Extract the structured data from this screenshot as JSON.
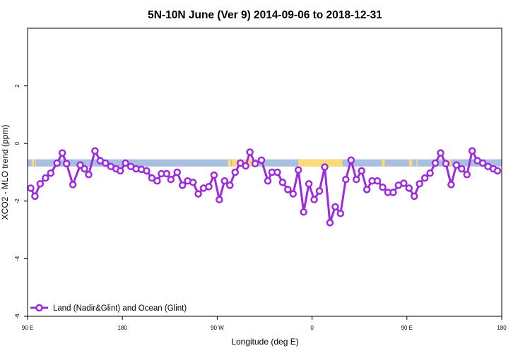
{
  "chart_data": {
    "type": "line",
    "title": "5N-10N June (Ver 9)   2014-09-06 to 2018-12-31",
    "xlabel": "Longitude (deg E)",
    "ylabel": "XCO2 - MLO trend (ppm)",
    "xlim": [
      90,
      540
    ],
    "ylim": [
      -6,
      4
    ],
    "xticks": [
      {
        "value": 90,
        "label": "90 E"
      },
      {
        "value": 180,
        "label": "180"
      },
      {
        "value": 270,
        "label": "90 W"
      },
      {
        "value": 360,
        "label": "0"
      },
      {
        "value": 450,
        "label": "90 E"
      },
      {
        "value": 540,
        "label": "180"
      }
    ],
    "yticks": [
      {
        "value": -6,
        "label": "-6"
      },
      {
        "value": -4,
        "label": "-4"
      },
      {
        "value": -2,
        "label": "-2"
      },
      {
        "value": 0,
        "label": "0"
      },
      {
        "value": 2,
        "label": "2"
      }
    ],
    "band": {
      "y_range": [
        -0.8,
        -0.55
      ],
      "ocean_color": "#a8bfdf",
      "land_color": "#fcd97a"
    },
    "land_segments": [
      [
        94,
        96
      ],
      [
        97,
        98
      ],
      [
        280,
        283
      ],
      [
        284,
        305
      ],
      [
        306,
        307
      ],
      [
        312,
        314
      ],
      [
        347,
        389
      ],
      [
        426,
        429
      ],
      [
        452,
        455
      ],
      [
        459,
        460
      ],
      [
        489,
        492
      ]
    ],
    "legend": {
      "position": "bottom-left"
    },
    "grid": false,
    "series": [
      {
        "name": "Land (Nadir&Glint) and Ocean (Glint)",
        "color": "#9b2bdc",
        "x": [
          93,
          97,
          102,
          107,
          112,
          118,
          123,
          127,
          133,
          140,
          144,
          148,
          154,
          159,
          164,
          169,
          174,
          178,
          183,
          188,
          193,
          198,
          203,
          208,
          213,
          217,
          222,
          226,
          232,
          237,
          242,
          247,
          252,
          257,
          262,
          267,
          272,
          277,
          282,
          287,
          292,
          297,
          301,
          306,
          312,
          318,
          322,
          327,
          332,
          337,
          342,
          347,
          352,
          357,
          362,
          367,
          372,
          377,
          382,
          387,
          392,
          397,
          402,
          407,
          412,
          417,
          422,
          427,
          432,
          437,
          442,
          447,
          452,
          457,
          462,
          467,
          472,
          477,
          482,
          487,
          492,
          497,
          502,
          507,
          512,
          517,
          522,
          527,
          532,
          536
        ],
        "values": [
          -1.55,
          -1.83,
          -1.4,
          -1.2,
          -1.03,
          -0.68,
          -0.33,
          -0.7,
          -1.43,
          -0.75,
          -0.88,
          -1.08,
          -0.26,
          -0.6,
          -0.68,
          -0.8,
          -0.88,
          -0.95,
          -0.68,
          -0.8,
          -0.88,
          -0.9,
          -0.95,
          -1.2,
          -1.3,
          -1.05,
          -1.05,
          -1.25,
          -1.0,
          -1.45,
          -1.3,
          -1.35,
          -1.75,
          -1.55,
          -1.5,
          -1.1,
          -1.95,
          -1.3,
          -1.45,
          -1.0,
          -0.68,
          -0.78,
          -0.3,
          -0.7,
          -0.58,
          -1.3,
          -1.0,
          -1.0,
          -1.35,
          -1.6,
          -1.75,
          -0.92,
          -2.38,
          -1.4,
          -1.95,
          -1.65,
          -0.82,
          -2.75,
          -2.2,
          -2.43,
          -1.25,
          -0.58,
          -1.25,
          -0.95,
          -1.6,
          -1.3,
          -1.3,
          -1.52,
          -1.7,
          -1.7,
          -1.45,
          -1.38,
          -1.55,
          -1.83,
          -1.4,
          -1.2,
          -1.03,
          -0.68,
          -0.33,
          -0.7,
          -1.43,
          -0.75,
          -0.88,
          -1.08,
          -0.26,
          -0.6,
          -0.68,
          -0.8,
          -0.88,
          -0.95
        ]
      }
    ]
  }
}
